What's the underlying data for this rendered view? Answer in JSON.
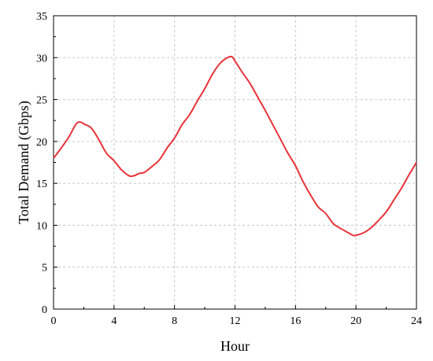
{
  "chart_data": {
    "type": "line",
    "xlabel": "Hour",
    "ylabel": "Total Demand (Gbps)",
    "xlim": [
      0,
      24
    ],
    "ylim": [
      0,
      35
    ],
    "xticks": [
      "0",
      "4",
      "8",
      "12",
      "16",
      "20",
      "24"
    ],
    "yticks": [
      "0",
      "5",
      "10",
      "15",
      "20",
      "25",
      "30",
      "35"
    ],
    "grid": true,
    "legend": "none",
    "series": [
      {
        "color": "#e8333a",
        "x": [
          0,
          0.5,
          1,
          1.5,
          1.8,
          2,
          2.5,
          3,
          3.5,
          4,
          4.5,
          5,
          5.3,
          5.7,
          6,
          6.5,
          7,
          7.5,
          8,
          8.5,
          9,
          9.5,
          10,
          10.5,
          11,
          11.5,
          11.8,
          12,
          12.5,
          13,
          13.5,
          14,
          14.5,
          15,
          15.5,
          16,
          16.5,
          17,
          17.5,
          18,
          18.5,
          19,
          19.5,
          19.8,
          20,
          20.5,
          21,
          21.5,
          22,
          22.5,
          23,
          23.5,
          24
        ],
        "y": [
          18,
          19.2,
          20.5,
          22.1,
          22.3,
          22.1,
          21.6,
          20.2,
          18.6,
          17.7,
          16.6,
          15.9,
          15.9,
          16.2,
          16.3,
          17.0,
          17.8,
          19.2,
          20.4,
          22.0,
          23.2,
          24.8,
          26.3,
          28.0,
          29.3,
          30.0,
          30.1,
          29.6,
          28.2,
          26.9,
          25.3,
          23.7,
          22.0,
          20.3,
          18.6,
          17.1,
          15.2,
          13.6,
          12.2,
          11.4,
          10.2,
          9.6,
          9.1,
          8.8,
          8.8,
          9.1,
          9.7,
          10.6,
          11.6,
          13.0,
          14.4,
          16.0,
          17.5
        ]
      }
    ]
  }
}
